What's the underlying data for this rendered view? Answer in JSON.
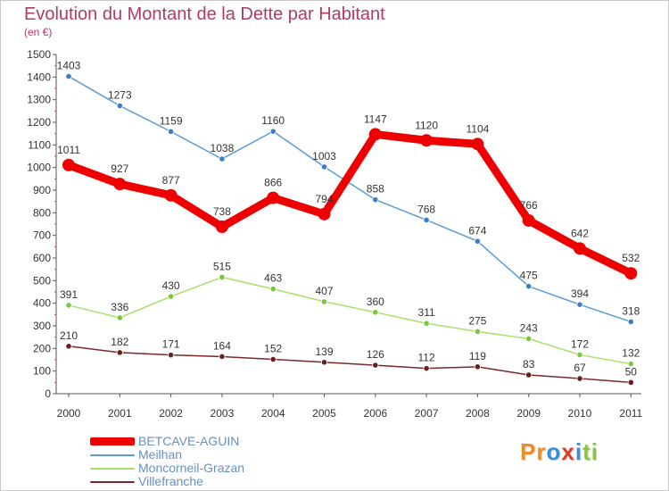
{
  "title": "Evolution du Montant de la Dette par Habitant",
  "subtitle": "(en €)",
  "logo": {
    "text": "Proxiti",
    "letter_colors": [
      "#f08c1e",
      "#f08c1e",
      "#3a8fd6",
      "#e03a2a",
      "#3a8fd6",
      "#8cc63f",
      "#8cc63f"
    ]
  },
  "chart_data": {
    "type": "line",
    "title": "Evolution du Montant de la Dette par Habitant",
    "subtitle": "(en €)",
    "x": [
      "2000",
      "2001",
      "2002",
      "2003",
      "2004",
      "2005",
      "2006",
      "2007",
      "2008",
      "2009",
      "2010",
      "2011"
    ],
    "ylim": [
      0,
      1500
    ],
    "yticks": [
      0,
      100,
      200,
      300,
      400,
      500,
      600,
      700,
      800,
      900,
      1000,
      1100,
      1200,
      1300,
      1400,
      1500
    ],
    "grid": false,
    "legend_position": "bottom-left",
    "series": [
      {
        "name": "Meilhan",
        "color": "#5b9bd5",
        "point_color": "#3a7fc4",
        "emphasis": false,
        "values": [
          1403,
          1273,
          1159,
          1038,
          1160,
          1003,
          858,
          768,
          674,
          475,
          394,
          318
        ]
      },
      {
        "name": "Moncorneil-Grazan",
        "color": "#a8e06a",
        "point_color": "#7cc63f",
        "emphasis": false,
        "values": [
          391,
          336,
          430,
          515,
          463,
          407,
          360,
          311,
          275,
          243,
          172,
          132
        ]
      },
      {
        "name": "Villefranche",
        "color": "#7a2a2a",
        "point_color": "#6a1f1f",
        "emphasis": false,
        "values": [
          210,
          182,
          171,
          164,
          152,
          139,
          126,
          112,
          119,
          83,
          67,
          50
        ]
      },
      {
        "name": "BETCAVE-AGUIN",
        "color": "#ee0000",
        "point_color": "#ee0000",
        "emphasis": true,
        "values": [
          1011,
          927,
          877,
          738,
          866,
          794,
          1147,
          1120,
          1104,
          766,
          642,
          532
        ]
      }
    ],
    "legend_order": [
      "BETCAVE-AGUIN",
      "Meilhan",
      "Moncorneil-Grazan",
      "Villefranche"
    ]
  }
}
